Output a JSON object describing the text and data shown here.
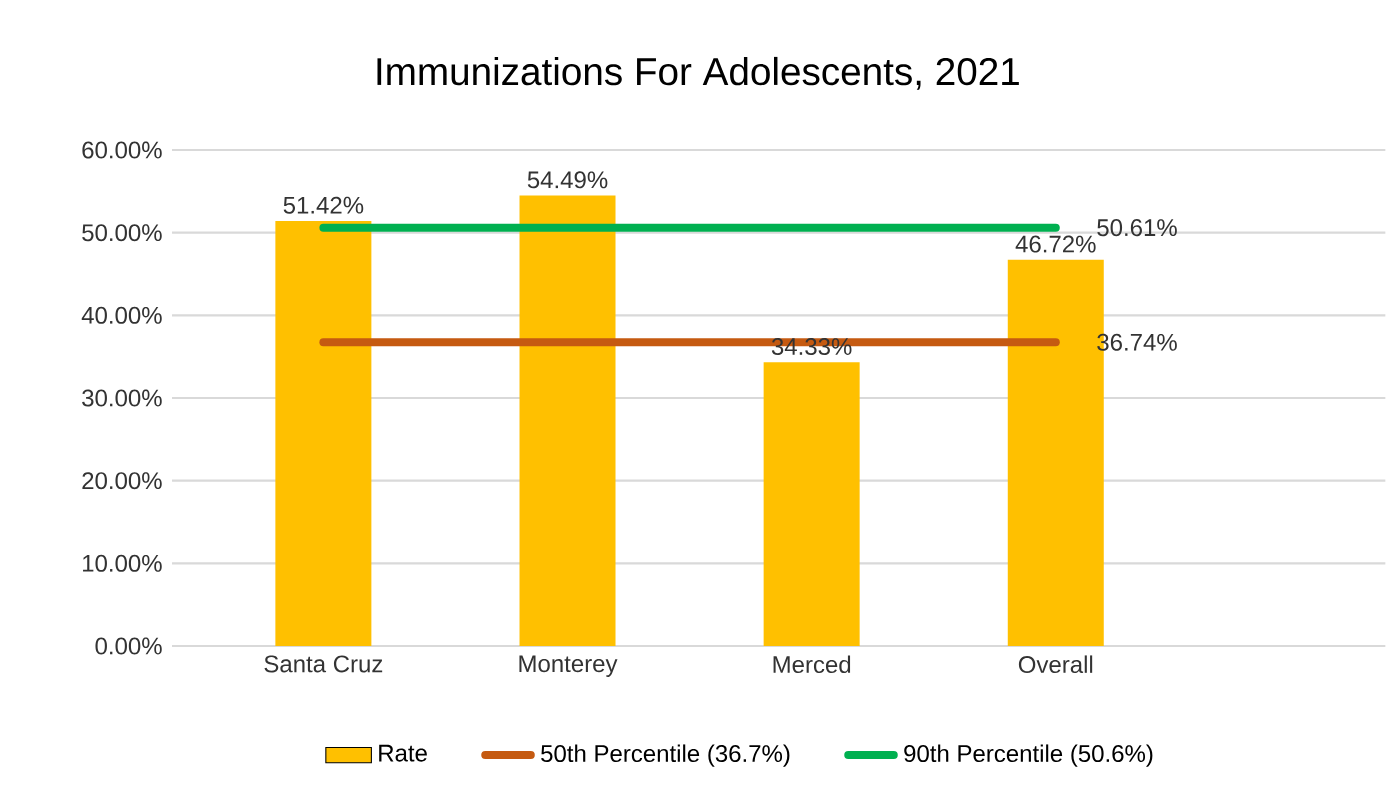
{
  "chart_data": {
    "type": "bar",
    "title": "Immunizations For Adolescents, 2021",
    "categories": [
      "Santa Cruz",
      "Monterey",
      "Merced",
      "Overall"
    ],
    "series": [
      {
        "name": "Rate",
        "color": "#ffc000",
        "values": [
          51.42,
          54.49,
          34.33,
          46.72
        ],
        "value_labels": [
          "51.42%",
          "54.49%",
          "34.33%",
          "46.72%"
        ]
      },
      {
        "name": "50th Percentile (36.7%)",
        "type": "line",
        "color": "#c55a11",
        "values": [
          36.74,
          36.74,
          36.74,
          36.74
        ],
        "value_labels": [
          null,
          null,
          null,
          "36.74%"
        ]
      },
      {
        "name": "90th Percentile (50.6%)",
        "type": "line",
        "color": "#00b050",
        "values": [
          50.61,
          50.61,
          50.61,
          50.61
        ],
        "value_labels": [
          null,
          null,
          null,
          "50.61%"
        ]
      }
    ],
    "ylim": [
      0,
      60
    ],
    "yticks": [
      {
        "value": 0,
        "label": "0.00%"
      },
      {
        "value": 10,
        "label": "10.00%"
      },
      {
        "value": 20,
        "label": "20.00%"
      },
      {
        "value": 30,
        "label": "30.00%"
      },
      {
        "value": 40,
        "label": "40.00%"
      },
      {
        "value": 50,
        "label": "50.00%"
      },
      {
        "value": 60,
        "label": "60.00%"
      }
    ],
    "grid": "y",
    "legend": "bottom"
  }
}
